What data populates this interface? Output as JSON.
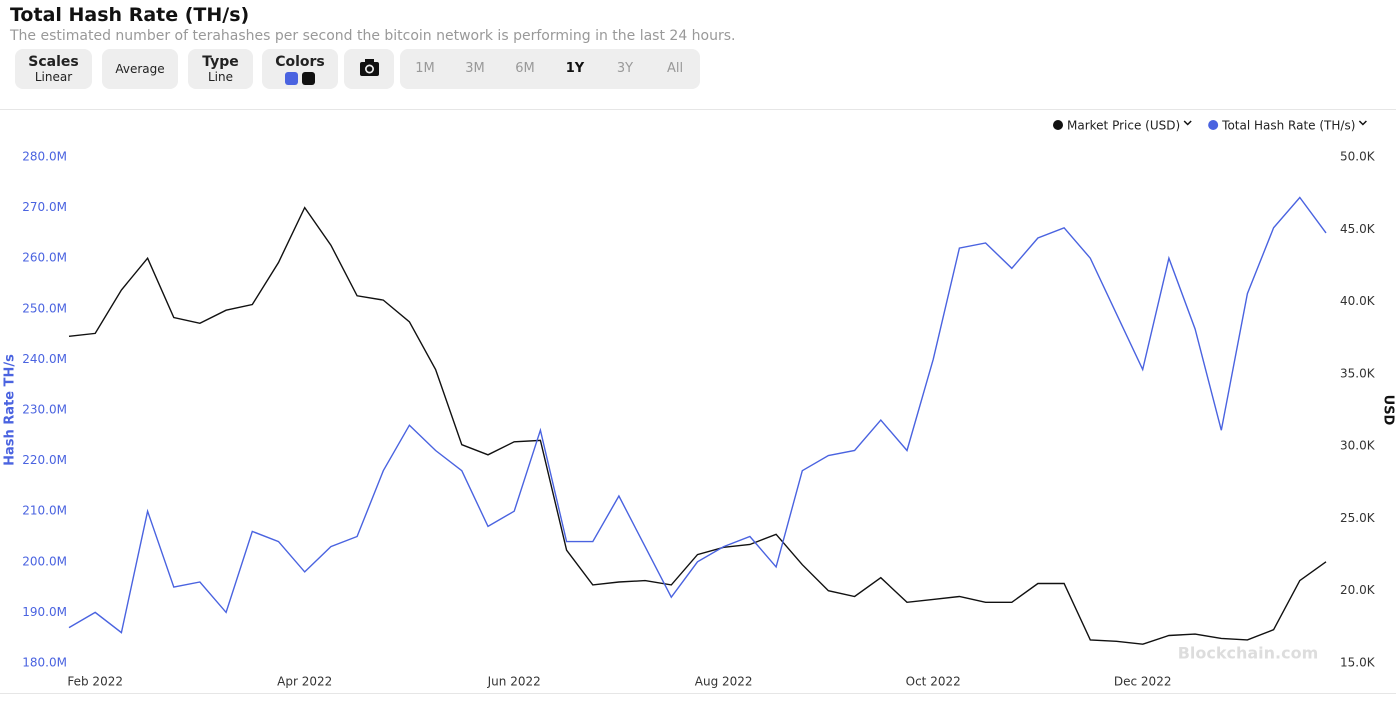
{
  "ui": {
    "title": "Total Hash Rate (TH/s)",
    "subtitle": "The estimated number of terahashes per second the bitcoin network is performing in the last 24 hours.",
    "scales_label": "Scales",
    "scales_value": "Linear",
    "average": "Average",
    "type_label": "Type",
    "type_value": "Line",
    "colors_label": "Colors",
    "ranges": [
      "1M",
      "3M",
      "6M",
      "1Y",
      "3Y",
      "All"
    ],
    "active_range": "1Y",
    "watermark": "Blockchain.com"
  },
  "chart_data": {
    "type": "line",
    "y_label": "Hash Rate TH/s",
    "y2_label": "USD",
    "categories": [
      null,
      "Feb 2022",
      null,
      null,
      null,
      null,
      null,
      null,
      null,
      "Apr 2022",
      null,
      null,
      null,
      null,
      null,
      null,
      null,
      "Jun 2022",
      null,
      null,
      null,
      null,
      null,
      null,
      null,
      "Aug 2022",
      null,
      null,
      null,
      null,
      null,
      null,
      null,
      "Oct 2022",
      null,
      null,
      null,
      null,
      null,
      null,
      null,
      "Dec 2022",
      null,
      null,
      null,
      null,
      null,
      null,
      null
    ],
    "series": [
      {
        "name": "Market Price (USD)",
        "color": "#111111",
        "axis": "y2",
        "values": [
          37600,
          37800,
          40800,
          43000,
          38900,
          38500,
          39400,
          39800,
          42700,
          46500,
          43900,
          40400,
          40100,
          38600,
          35300,
          30100,
          29400,
          30300,
          30400,
          22800,
          20400,
          20600,
          20700,
          20400,
          22500,
          23000,
          23200,
          23900,
          21800,
          20000,
          19600,
          20900,
          19200,
          19400,
          19600,
          19200,
          19200,
          20500,
          20500,
          16600,
          16500,
          16300,
          16900,
          17000,
          16700,
          16600,
          17300,
          20700,
          22000
        ]
      },
      {
        "name": "Total Hash Rate (TH/s)",
        "color": "#4a63e0",
        "axis": "y",
        "values": [
          187000000,
          190000000,
          186000000,
          210000000,
          195000000,
          196000000,
          190000000,
          206000000,
          204000000,
          198000000,
          203000000,
          205000000,
          218000000,
          227000000,
          222000000,
          218000000,
          207000000,
          210000000,
          226000000,
          204000000,
          204000000,
          213000000,
          203000000,
          193000000,
          200000000,
          203000000,
          205000000,
          199000000,
          218000000,
          221000000,
          222000000,
          228000000,
          222000000,
          240000000,
          262000000,
          263000000,
          258000000,
          264000000,
          266000000,
          260000000,
          249000000,
          238000000,
          260000000,
          246000000,
          226000000,
          253000000,
          266000000,
          272000000,
          265000000
        ]
      }
    ],
    "ylim": [
      180000000,
      280000000
    ],
    "yticks": [
      {
        "value": 180000000,
        "label": "180.0M"
      },
      {
        "value": 190000000,
        "label": "190.0M"
      },
      {
        "value": 200000000,
        "label": "200.0M"
      },
      {
        "value": 210000000,
        "label": "210.0M"
      },
      {
        "value": 220000000,
        "label": "220.0M"
      },
      {
        "value": 230000000,
        "label": "230.0M"
      },
      {
        "value": 240000000,
        "label": "240.0M"
      },
      {
        "value": 250000000,
        "label": "250.0M"
      },
      {
        "value": 260000000,
        "label": "260.0M"
      },
      {
        "value": 270000000,
        "label": "270.0M"
      },
      {
        "value": 280000000,
        "label": "280.0M"
      }
    ],
    "y2lim": [
      15000,
      50000
    ],
    "y2ticks": [
      {
        "value": 15000,
        "label": "15.0K"
      },
      {
        "value": 20000,
        "label": "20.0K"
      },
      {
        "value": 25000,
        "label": "25.0K"
      },
      {
        "value": 30000,
        "label": "30.0K"
      },
      {
        "value": 35000,
        "label": "35.0K"
      },
      {
        "value": 40000,
        "label": "40.0K"
      },
      {
        "value": 45000,
        "label": "45.0K"
      },
      {
        "value": 50000,
        "label": "50.0K"
      }
    ],
    "grid": false
  }
}
